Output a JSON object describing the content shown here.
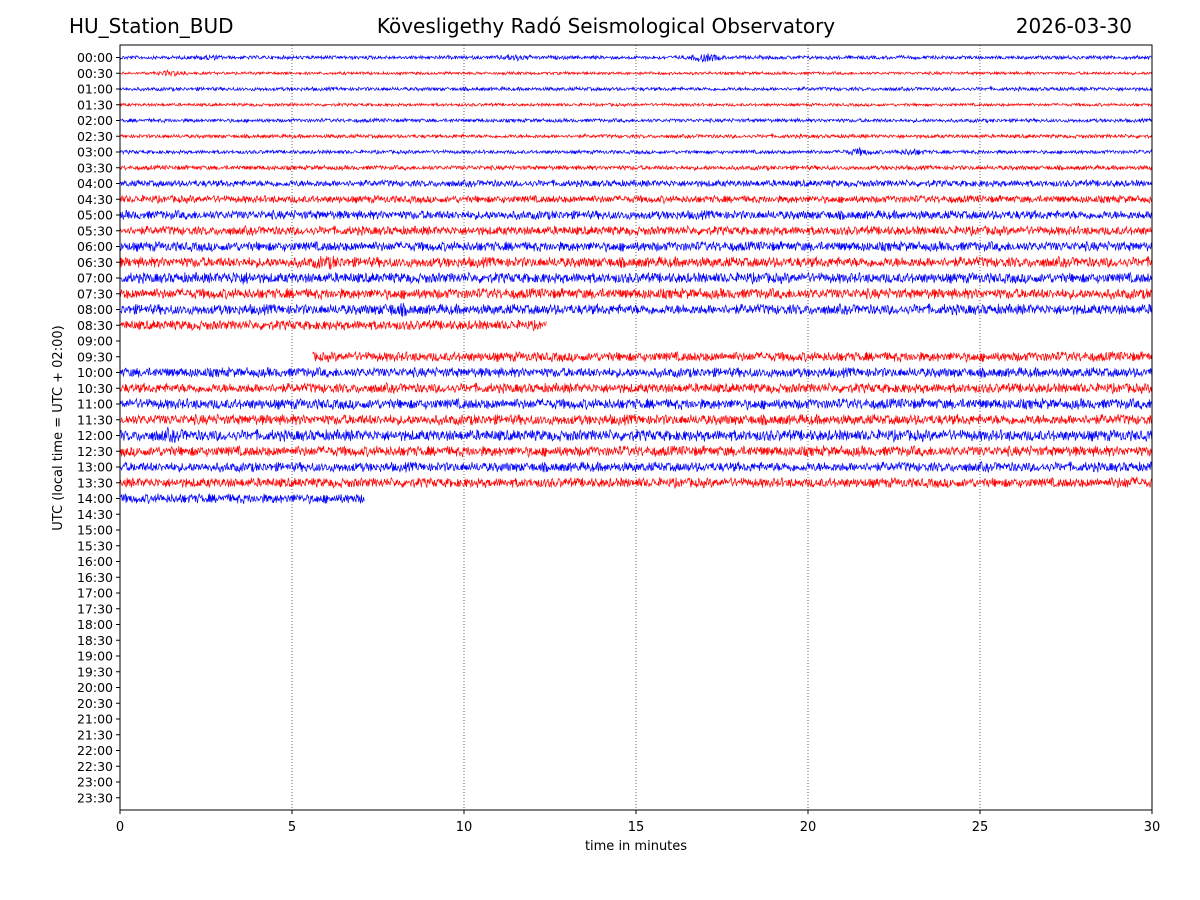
{
  "header": {
    "station": "HU_Station_BUD",
    "title": "Kövesligethy Radó Seismological Observatory",
    "date": "2026-03-30"
  },
  "chart_data": {
    "type": "line",
    "title": "Kövesligethy Radó Seismological Observatory",
    "xlabel": "time in minutes",
    "ylabel": "UTC (local time = UTC + 02:00)",
    "xlim": [
      0,
      30
    ],
    "x_ticks": [
      0,
      5,
      10,
      15,
      20,
      25,
      30
    ],
    "grid": "vertical dotted at x ticks",
    "colors": {
      "even_row": "#0000ff",
      "odd_row": "#ff0000"
    },
    "rows": [
      "00:00",
      "00:30",
      "01:00",
      "01:30",
      "02:00",
      "02:30",
      "03:00",
      "03:30",
      "04:00",
      "04:30",
      "05:00",
      "05:30",
      "06:00",
      "06:30",
      "07:00",
      "07:30",
      "08:00",
      "08:30",
      "09:00",
      "09:30",
      "10:00",
      "10:30",
      "11:00",
      "11:30",
      "12:00",
      "12:30",
      "13:00",
      "13:30",
      "14:00",
      "14:30",
      "15:00",
      "15:30",
      "16:00",
      "16:30",
      "17:00",
      "17:30",
      "18:00",
      "18:30",
      "19:00",
      "19:30",
      "20:00",
      "20:30",
      "21:00",
      "21:30",
      "22:00",
      "22:30",
      "23:00",
      "23:30"
    ],
    "series": [
      {
        "row": "00:00",
        "start": 0,
        "end": 30,
        "amplitude": 0.25,
        "bursts": [
          {
            "x": 2.5,
            "amp": 0.45
          },
          {
            "x": 11.5,
            "amp": 0.55
          },
          {
            "x": 17,
            "amp": 0.7
          }
        ]
      },
      {
        "row": "00:30",
        "start": 0,
        "end": 30,
        "amplitude": 0.2,
        "bursts": [
          {
            "x": 1.5,
            "amp": 0.45
          }
        ]
      },
      {
        "row": "01:00",
        "start": 0,
        "end": 30,
        "amplitude": 0.25,
        "bursts": []
      },
      {
        "row": "01:30",
        "start": 0,
        "end": 30,
        "amplitude": 0.2,
        "bursts": []
      },
      {
        "row": "02:00",
        "start": 0,
        "end": 30,
        "amplitude": 0.25,
        "bursts": []
      },
      {
        "row": "02:30",
        "start": 0,
        "end": 30,
        "amplitude": 0.25,
        "bursts": []
      },
      {
        "row": "03:00",
        "start": 0,
        "end": 30,
        "amplitude": 0.25,
        "bursts": [
          {
            "x": 21.5,
            "amp": 0.6
          },
          {
            "x": 23,
            "amp": 0.55
          }
        ]
      },
      {
        "row": "03:30",
        "start": 0,
        "end": 30,
        "amplitude": 0.3,
        "bursts": []
      },
      {
        "row": "04:00",
        "start": 0,
        "end": 30,
        "amplitude": 0.45,
        "bursts": []
      },
      {
        "row": "04:30",
        "start": 0,
        "end": 30,
        "amplitude": 0.5,
        "bursts": []
      },
      {
        "row": "05:00",
        "start": 0,
        "end": 30,
        "amplitude": 0.6,
        "bursts": []
      },
      {
        "row": "05:30",
        "start": 0,
        "end": 30,
        "amplitude": 0.6,
        "bursts": []
      },
      {
        "row": "06:00",
        "start": 0,
        "end": 30,
        "amplitude": 0.65,
        "bursts": []
      },
      {
        "row": "06:30",
        "start": 0,
        "end": 30,
        "amplitude": 0.7,
        "bursts": [
          {
            "x": 6,
            "amp": 1.0
          }
        ]
      },
      {
        "row": "07:00",
        "start": 0,
        "end": 30,
        "amplitude": 0.7,
        "bursts": [
          {
            "x": 3.5,
            "amp": 1.0
          }
        ]
      },
      {
        "row": "07:30",
        "start": 0,
        "end": 30,
        "amplitude": 0.7,
        "bursts": []
      },
      {
        "row": "08:00",
        "start": 0,
        "end": 30,
        "amplitude": 0.7,
        "bursts": [
          {
            "x": 8,
            "amp": 1.0
          }
        ]
      },
      {
        "row": "08:30",
        "start": 0,
        "end": 12.4,
        "amplitude": 0.65,
        "bursts": []
      },
      {
        "row": "09:30",
        "start": 5.6,
        "end": 30,
        "amplitude": 0.65,
        "bursts": []
      },
      {
        "row": "10:00",
        "start": 0,
        "end": 30,
        "amplitude": 0.65,
        "bursts": []
      },
      {
        "row": "10:30",
        "start": 0,
        "end": 30,
        "amplitude": 0.65,
        "bursts": []
      },
      {
        "row": "11:00",
        "start": 0,
        "end": 30,
        "amplitude": 0.7,
        "bursts": []
      },
      {
        "row": "11:30",
        "start": 0,
        "end": 30,
        "amplitude": 0.7,
        "bursts": []
      },
      {
        "row": "12:00",
        "start": 0,
        "end": 30,
        "amplitude": 0.75,
        "bursts": [
          {
            "x": 1.5,
            "amp": 1.0
          }
        ]
      },
      {
        "row": "12:30",
        "start": 0,
        "end": 30,
        "amplitude": 0.7,
        "bursts": []
      },
      {
        "row": "13:00",
        "start": 0,
        "end": 30,
        "amplitude": 0.65,
        "bursts": []
      },
      {
        "row": "13:30",
        "start": 0,
        "end": 30,
        "amplitude": 0.65,
        "bursts": [
          {
            "x": 29.3,
            "amp": 0.9
          }
        ]
      },
      {
        "row": "14:00",
        "start": 0,
        "end": 7.1,
        "amplitude": 0.65,
        "bursts": []
      }
    ]
  }
}
